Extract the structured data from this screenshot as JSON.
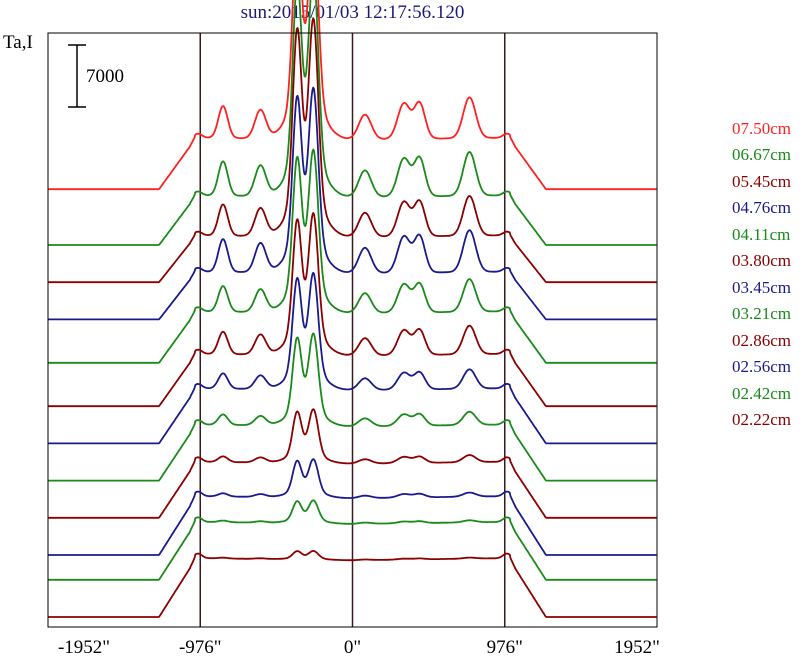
{
  "title": "sun:2015/01/03 12:17:56.120",
  "ylabel": "Ta,I",
  "scale_bar_label": "7000",
  "chart_data": {
    "type": "line",
    "title": "sun:2015/01/03 12:17:56.120",
    "ylabel": "Ta,I",
    "xlabel": "",
    "x_ticks": [
      "-1952\"",
      "-976\"",
      "0\"",
      "976\"",
      "1952\""
    ],
    "xlim": [
      -1952,
      1952
    ],
    "vertical_lines": [
      -976,
      0,
      976
    ],
    "scale_bar": 7000,
    "grid": false,
    "legend": "right",
    "series": [
      {
        "name": "07.50cm",
        "color": "#ff2020",
        "offset": 48300,
        "peak": 19800,
        "lobe": 5600,
        "struct": 4000
      },
      {
        "name": "06.67cm",
        "color": "#1a8a1a",
        "offset": 42000,
        "peak": 20500,
        "lobe": 5400,
        "struct": 4300
      },
      {
        "name": "05.45cm",
        "color": "#8b0000",
        "offset": 37800,
        "peak": 19800,
        "lobe": 5100,
        "struct": 3900
      },
      {
        "name": "04.76cm",
        "color": "#1a1a8f",
        "offset": 33600,
        "peak": 16800,
        "lobe": 5200,
        "struct": 4100
      },
      {
        "name": "04.11cm",
        "color": "#1a8a1a",
        "offset": 28700,
        "peak": 14800,
        "lobe": 5600,
        "struct": 3200
      },
      {
        "name": "03.80cm",
        "color": "#8b0000",
        "offset": 23800,
        "peak": 12900,
        "lobe": 5700,
        "struct": 2800
      },
      {
        "name": "03.45cm",
        "color": "#1a1a8f",
        "offset": 19600,
        "peak": 10600,
        "lobe": 6000,
        "struct": 1900
      },
      {
        "name": "03.21cm",
        "color": "#1a8a1a",
        "offset": 15400,
        "peak": 8400,
        "lobe": 6100,
        "struct": 1300
      },
      {
        "name": "02.86cm",
        "color": "#8b0000",
        "offset": 11200,
        "peak": 4900,
        "lobe": 6100,
        "struct": 700
      },
      {
        "name": "02.56cm",
        "color": "#1a1a8f",
        "offset": 7000,
        "peak": 3500,
        "lobe": 6400,
        "struct": 400
      },
      {
        "name": "02.42cm",
        "color": "#1a8a1a",
        "offset": 4200,
        "peak": 2100,
        "lobe": 6300,
        "struct": 200
      },
      {
        "name": "02.22cm",
        "color": "#8b0000",
        "offset": 0,
        "peak": 800,
        "lobe": 6400,
        "struct": 100
      }
    ]
  }
}
